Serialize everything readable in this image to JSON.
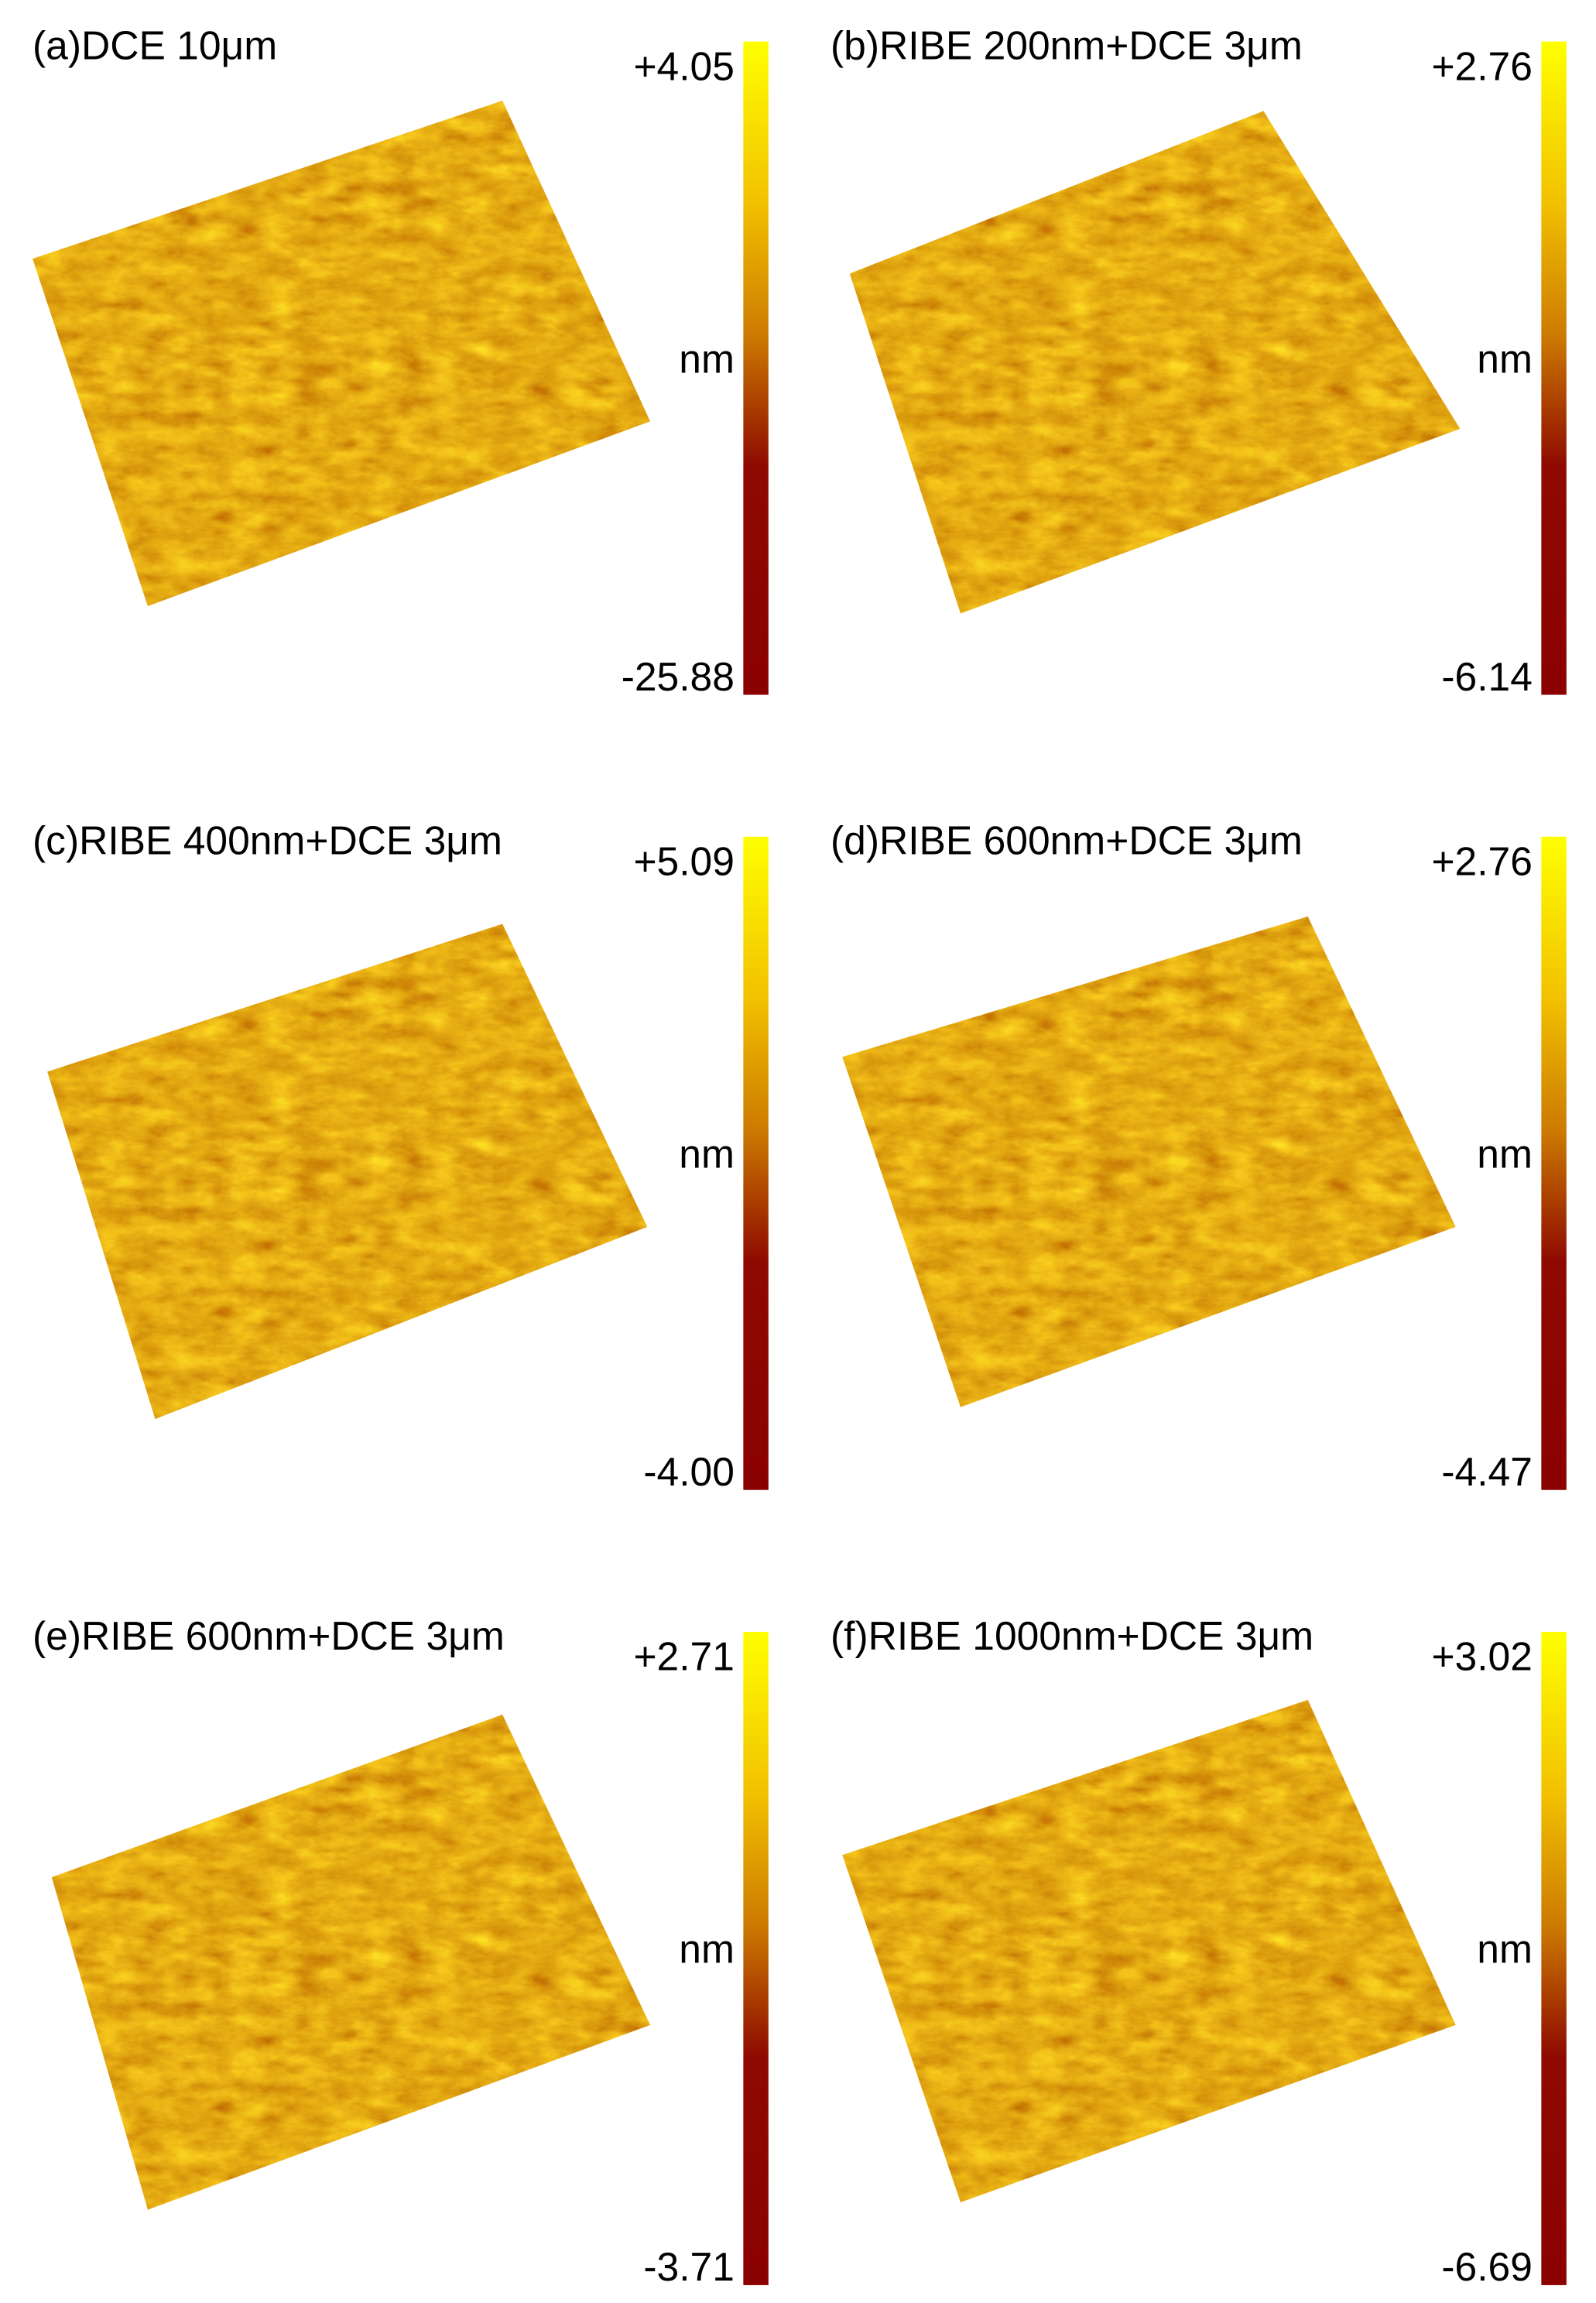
{
  "panels": [
    {
      "title": "(a)DCE 10μm",
      "max": "+4.05",
      "unit": "nm",
      "min": "-25.88"
    },
    {
      "title": "(b)RIBE 200nm+DCE 3μm",
      "max": "+2.76",
      "unit": "nm",
      "min": "-6.14"
    },
    {
      "title": "(c)RIBE 400nm+DCE 3μm",
      "max": "+5.09",
      "unit": "nm",
      "min": "-4.00"
    },
    {
      "title": "(d)RIBE 600nm+DCE 3μm",
      "max": "+2.76",
      "unit": "nm",
      "min": "-4.47"
    },
    {
      "title": "(e)RIBE 600nm+DCE 3μm",
      "max": "+2.71",
      "unit": "nm",
      "min": "-3.71"
    },
    {
      "title": "(f)RIBE 1000nm+DCE 3μm",
      "max": "+3.02",
      "unit": "nm",
      "min": "-6.69"
    }
  ]
}
